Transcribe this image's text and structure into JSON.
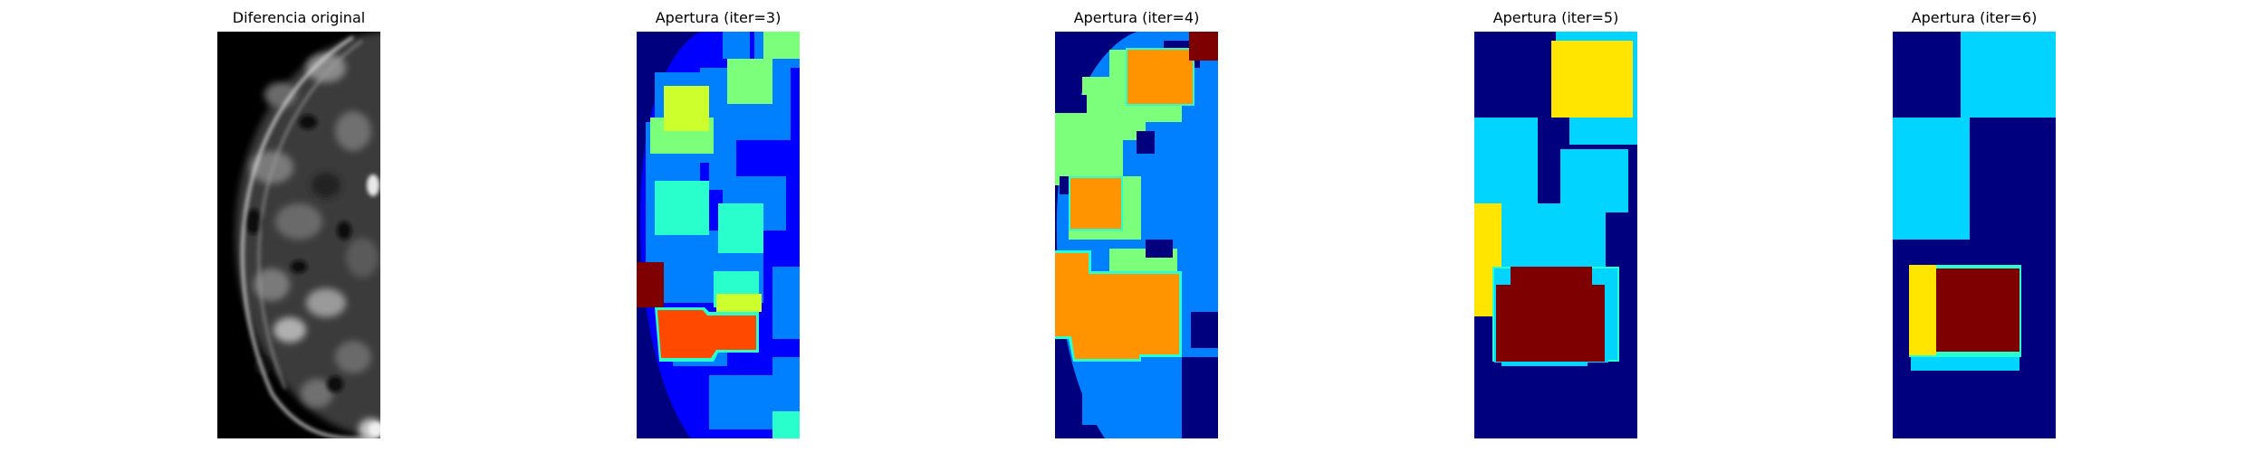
{
  "figure": {
    "panels": [
      {
        "title": "Diferencia original"
      },
      {
        "title": "Apertura (iter=3)"
      },
      {
        "title": "Apertura (iter=4)"
      },
      {
        "title": "Apertura (iter=5)"
      },
      {
        "title": "Apertura (iter=6)"
      }
    ],
    "colormap": [
      "#00007f",
      "#0000ff",
      "#0080ff",
      "#00d4ff",
      "#29ffcd",
      "#7cff7a",
      "#ccff2b",
      "#ffe500",
      "#ff9400",
      "#ff4800",
      "#7f0000"
    ]
  }
}
